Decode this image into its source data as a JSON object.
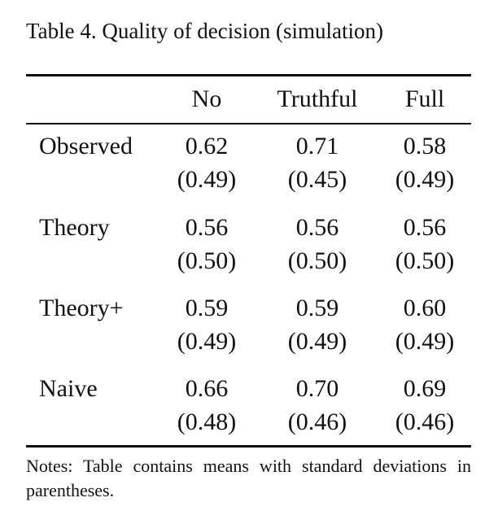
{
  "title": "Table 4. Quality of decision (simulation)",
  "columns": [
    "No",
    "Truthful",
    "Full"
  ],
  "rows": [
    {
      "label": "Observed",
      "means": [
        "0.62",
        "0.71",
        "0.58"
      ],
      "sds": [
        "(0.49)",
        "(0.45)",
        "(0.49)"
      ]
    },
    {
      "label": "Theory",
      "means": [
        "0.56",
        "0.56",
        "0.56"
      ],
      "sds": [
        "(0.50)",
        "(0.50)",
        "(0.50)"
      ]
    },
    {
      "label": "Theory+",
      "means": [
        "0.59",
        "0.59",
        "0.60"
      ],
      "sds": [
        "(0.49)",
        "(0.49)",
        "(0.49)"
      ]
    },
    {
      "label": "Naive",
      "means": [
        "0.66",
        "0.70",
        "0.69"
      ],
      "sds": [
        "(0.48)",
        "(0.46)",
        "(0.46)"
      ]
    }
  ],
  "notes": "Notes: Table contains means with standard deviations in parentheses."
}
